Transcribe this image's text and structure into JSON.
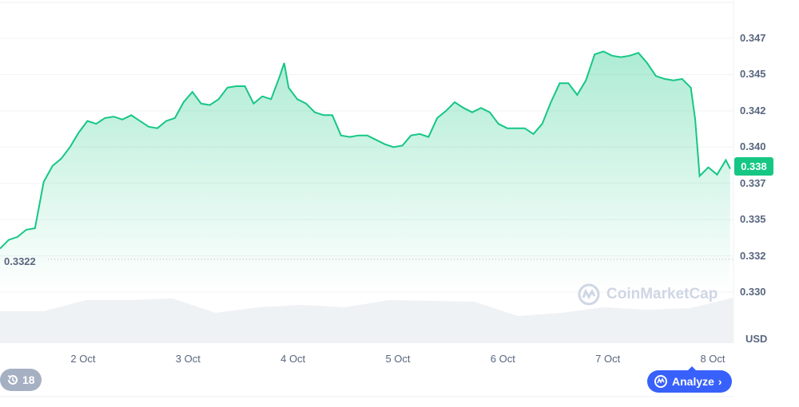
{
  "chart_data": {
    "type": "area",
    "title": "",
    "xlabel": "",
    "ylabel": "",
    "unit_label": "USD",
    "y_ticks": [
      "0.347",
      "0.345",
      "0.342",
      "0.340",
      "0.337",
      "0.335",
      "0.332",
      "0.330"
    ],
    "ylim": [
      0.3295,
      0.347
    ],
    "x_ticks": [
      "2 Oct",
      "3 Oct",
      "4 Oct",
      "5 Oct",
      "6 Oct",
      "7 Oct",
      "8 Oct"
    ],
    "xlim": [
      "Oct 1 05:00",
      "Oct 8 04:45"
    ],
    "grid": true,
    "line_color": "#16c784",
    "current_price": "0.338",
    "min_price_label": "0.3322",
    "points": [
      [
        "Oct 1 05:00",
        0.3325
      ],
      [
        "Oct 1 07:00",
        0.3331
      ],
      [
        "Oct 1 09:00",
        0.3333
      ],
      [
        "Oct 1 11:00",
        0.3338
      ],
      [
        "Oct 1 13:00",
        0.3339
      ],
      [
        "Oct 1 15:00",
        0.3371
      ],
      [
        "Oct 1 17:00",
        0.3382
      ],
      [
        "Oct 1 19:00",
        0.3387
      ],
      [
        "Oct 1 21:00",
        0.3395
      ],
      [
        "Oct 1 23:00",
        0.3405
      ],
      [
        "Oct 2 01:00",
        0.3413
      ],
      [
        "Oct 2 03:00",
        0.3411
      ],
      [
        "Oct 2 05:00",
        0.3415
      ],
      [
        "Oct 2 07:00",
        0.3416
      ],
      [
        "Oct 2 09:00",
        0.3414
      ],
      [
        "Oct 2 11:00",
        0.3417
      ],
      [
        "Oct 2 13:00",
        0.3413
      ],
      [
        "Oct 2 15:00",
        0.3409
      ],
      [
        "Oct 2 17:00",
        0.3408
      ],
      [
        "Oct 2 19:00",
        0.3413
      ],
      [
        "Oct 2 21:00",
        0.3415
      ],
      [
        "Oct 2 23:00",
        0.3426
      ],
      [
        "Oct 3 01:00",
        0.3433
      ],
      [
        "Oct 3 03:00",
        0.3425
      ],
      [
        "Oct 3 05:00",
        0.3424
      ],
      [
        "Oct 3 07:00",
        0.3428
      ],
      [
        "Oct 3 09:00",
        0.3436
      ],
      [
        "Oct 3 11:00",
        0.3437
      ],
      [
        "Oct 3 13:00",
        0.3437
      ],
      [
        "Oct 3 15:00",
        0.3425
      ],
      [
        "Oct 3 17:00",
        0.343
      ],
      [
        "Oct 3 19:00",
        0.3428
      ],
      [
        "Oct 3 21:00",
        0.3444
      ],
      [
        "Oct 3 22:00",
        0.3453
      ],
      [
        "Oct 3 23:00",
        0.3436
      ],
      [
        "Oct 4 01:00",
        0.3428
      ],
      [
        "Oct 4 03:00",
        0.3425
      ],
      [
        "Oct 4 05:00",
        0.3419
      ],
      [
        "Oct 4 07:00",
        0.3417
      ],
      [
        "Oct 4 09:00",
        0.3417
      ],
      [
        "Oct 4 11:00",
        0.3403
      ],
      [
        "Oct 4 13:00",
        0.3402
      ],
      [
        "Oct 4 15:00",
        0.3403
      ],
      [
        "Oct 4 17:00",
        0.3403
      ],
      [
        "Oct 4 19:00",
        0.34
      ],
      [
        "Oct 4 21:00",
        0.3397
      ],
      [
        "Oct 4 23:00",
        0.3395
      ],
      [
        "Oct 5 01:00",
        0.3396
      ],
      [
        "Oct 5 03:00",
        0.3403
      ],
      [
        "Oct 5 05:00",
        0.3404
      ],
      [
        "Oct 5 07:00",
        0.3402
      ],
      [
        "Oct 5 09:00",
        0.3415
      ],
      [
        "Oct 5 11:00",
        0.342
      ],
      [
        "Oct 5 13:00",
        0.3426
      ],
      [
        "Oct 5 15:00",
        0.3422
      ],
      [
        "Oct 5 17:00",
        0.3419
      ],
      [
        "Oct 5 19:00",
        0.3422
      ],
      [
        "Oct 5 21:00",
        0.3419
      ],
      [
        "Oct 5 23:00",
        0.3411
      ],
      [
        "Oct 6 01:00",
        0.3408
      ],
      [
        "Oct 6 03:00",
        0.3408
      ],
      [
        "Oct 6 05:00",
        0.3408
      ],
      [
        "Oct 6 07:00",
        0.3404
      ],
      [
        "Oct 6 09:00",
        0.3411
      ],
      [
        "Oct 6 11:00",
        0.3426
      ],
      [
        "Oct 6 13:00",
        0.3439
      ],
      [
        "Oct 6 15:00",
        0.3439
      ],
      [
        "Oct 6 17:00",
        0.3431
      ],
      [
        "Oct 6 19:00",
        0.3441
      ],
      [
        "Oct 6 21:00",
        0.3459
      ],
      [
        "Oct 6 23:00",
        0.3461
      ],
      [
        "Oct 7 01:00",
        0.3458
      ],
      [
        "Oct 7 03:00",
        0.3457
      ],
      [
        "Oct 7 05:00",
        0.3458
      ],
      [
        "Oct 7 07:00",
        0.346
      ],
      [
        "Oct 7 09:00",
        0.3453
      ],
      [
        "Oct 7 11:00",
        0.3444
      ],
      [
        "Oct 7 13:00",
        0.3442
      ],
      [
        "Oct 7 15:00",
        0.3441
      ],
      [
        "Oct 7 17:00",
        0.3442
      ],
      [
        "Oct 7 19:00",
        0.3436
      ],
      [
        "Oct 7 20:00",
        0.3414
      ],
      [
        "Oct 7 21:00",
        0.3375
      ],
      [
        "Oct 7 23:00",
        0.3381
      ],
      [
        "Oct 8 01:00",
        0.3376
      ],
      [
        "Oct 8 03:00",
        0.3386
      ],
      [
        "Oct 8 04:00",
        0.338
      ]
    ]
  },
  "watermark": "CoinMarketCap",
  "history_badge": {
    "icon": "history-icon",
    "count": "18"
  },
  "analyze_button": {
    "icon": "coinmarketcap-chat-icon",
    "label": "Analyze",
    "chevron": "›",
    "color": "#3861fb"
  }
}
